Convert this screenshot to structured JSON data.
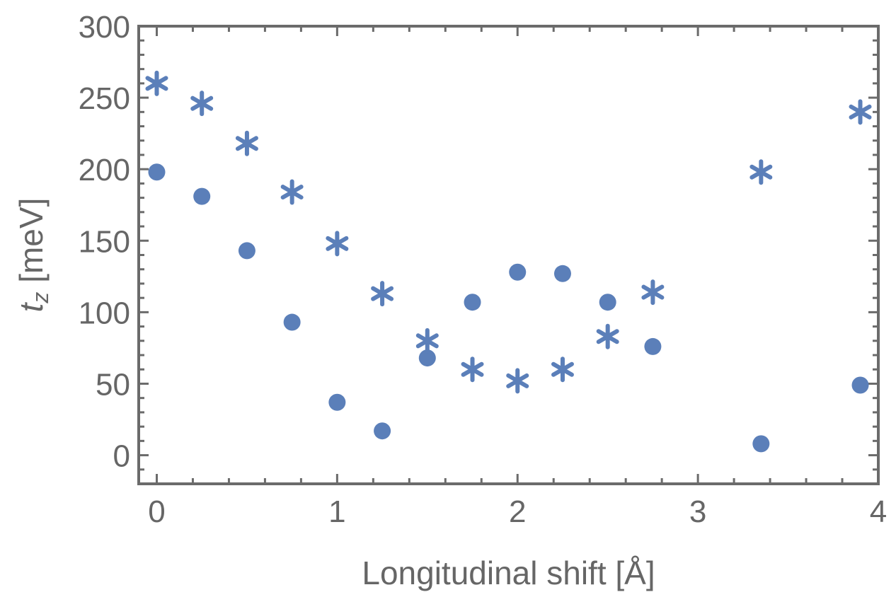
{
  "chart_data": {
    "type": "scatter",
    "xlabel": "Longitudinal shift [Å]",
    "ylabel_main": "t",
    "ylabel_sub": "z",
    "ylabel_unit": " [meV]",
    "xlim": [
      -0.1,
      4.0
    ],
    "ylim": [
      -20,
      300
    ],
    "xticks": [
      0,
      1,
      2,
      3,
      4
    ],
    "yticks": [
      0,
      50,
      100,
      150,
      200,
      250,
      300
    ],
    "grid": false,
    "colors": {
      "series": "#5b7fb9",
      "axis": "#6b6b6b",
      "text": "#666666"
    },
    "series": [
      {
        "marker": "circle",
        "x": [
          0,
          0.25,
          0.5,
          0.75,
          1.0,
          1.25,
          1.5,
          1.75,
          2.0,
          2.25,
          2.5,
          2.75,
          3.35,
          3.9
        ],
        "y": [
          198,
          181,
          143,
          93,
          37,
          17,
          68,
          107,
          128,
          127,
          107,
          76,
          8,
          49
        ]
      },
      {
        "marker": "star",
        "x": [
          0,
          0.25,
          0.5,
          0.75,
          1.0,
          1.25,
          1.5,
          1.75,
          2.0,
          2.25,
          2.5,
          2.75,
          3.35,
          3.9
        ],
        "y": [
          260,
          246,
          218,
          184,
          148,
          113,
          80,
          60,
          52,
          60,
          83,
          114,
          198,
          240
        ]
      }
    ]
  }
}
